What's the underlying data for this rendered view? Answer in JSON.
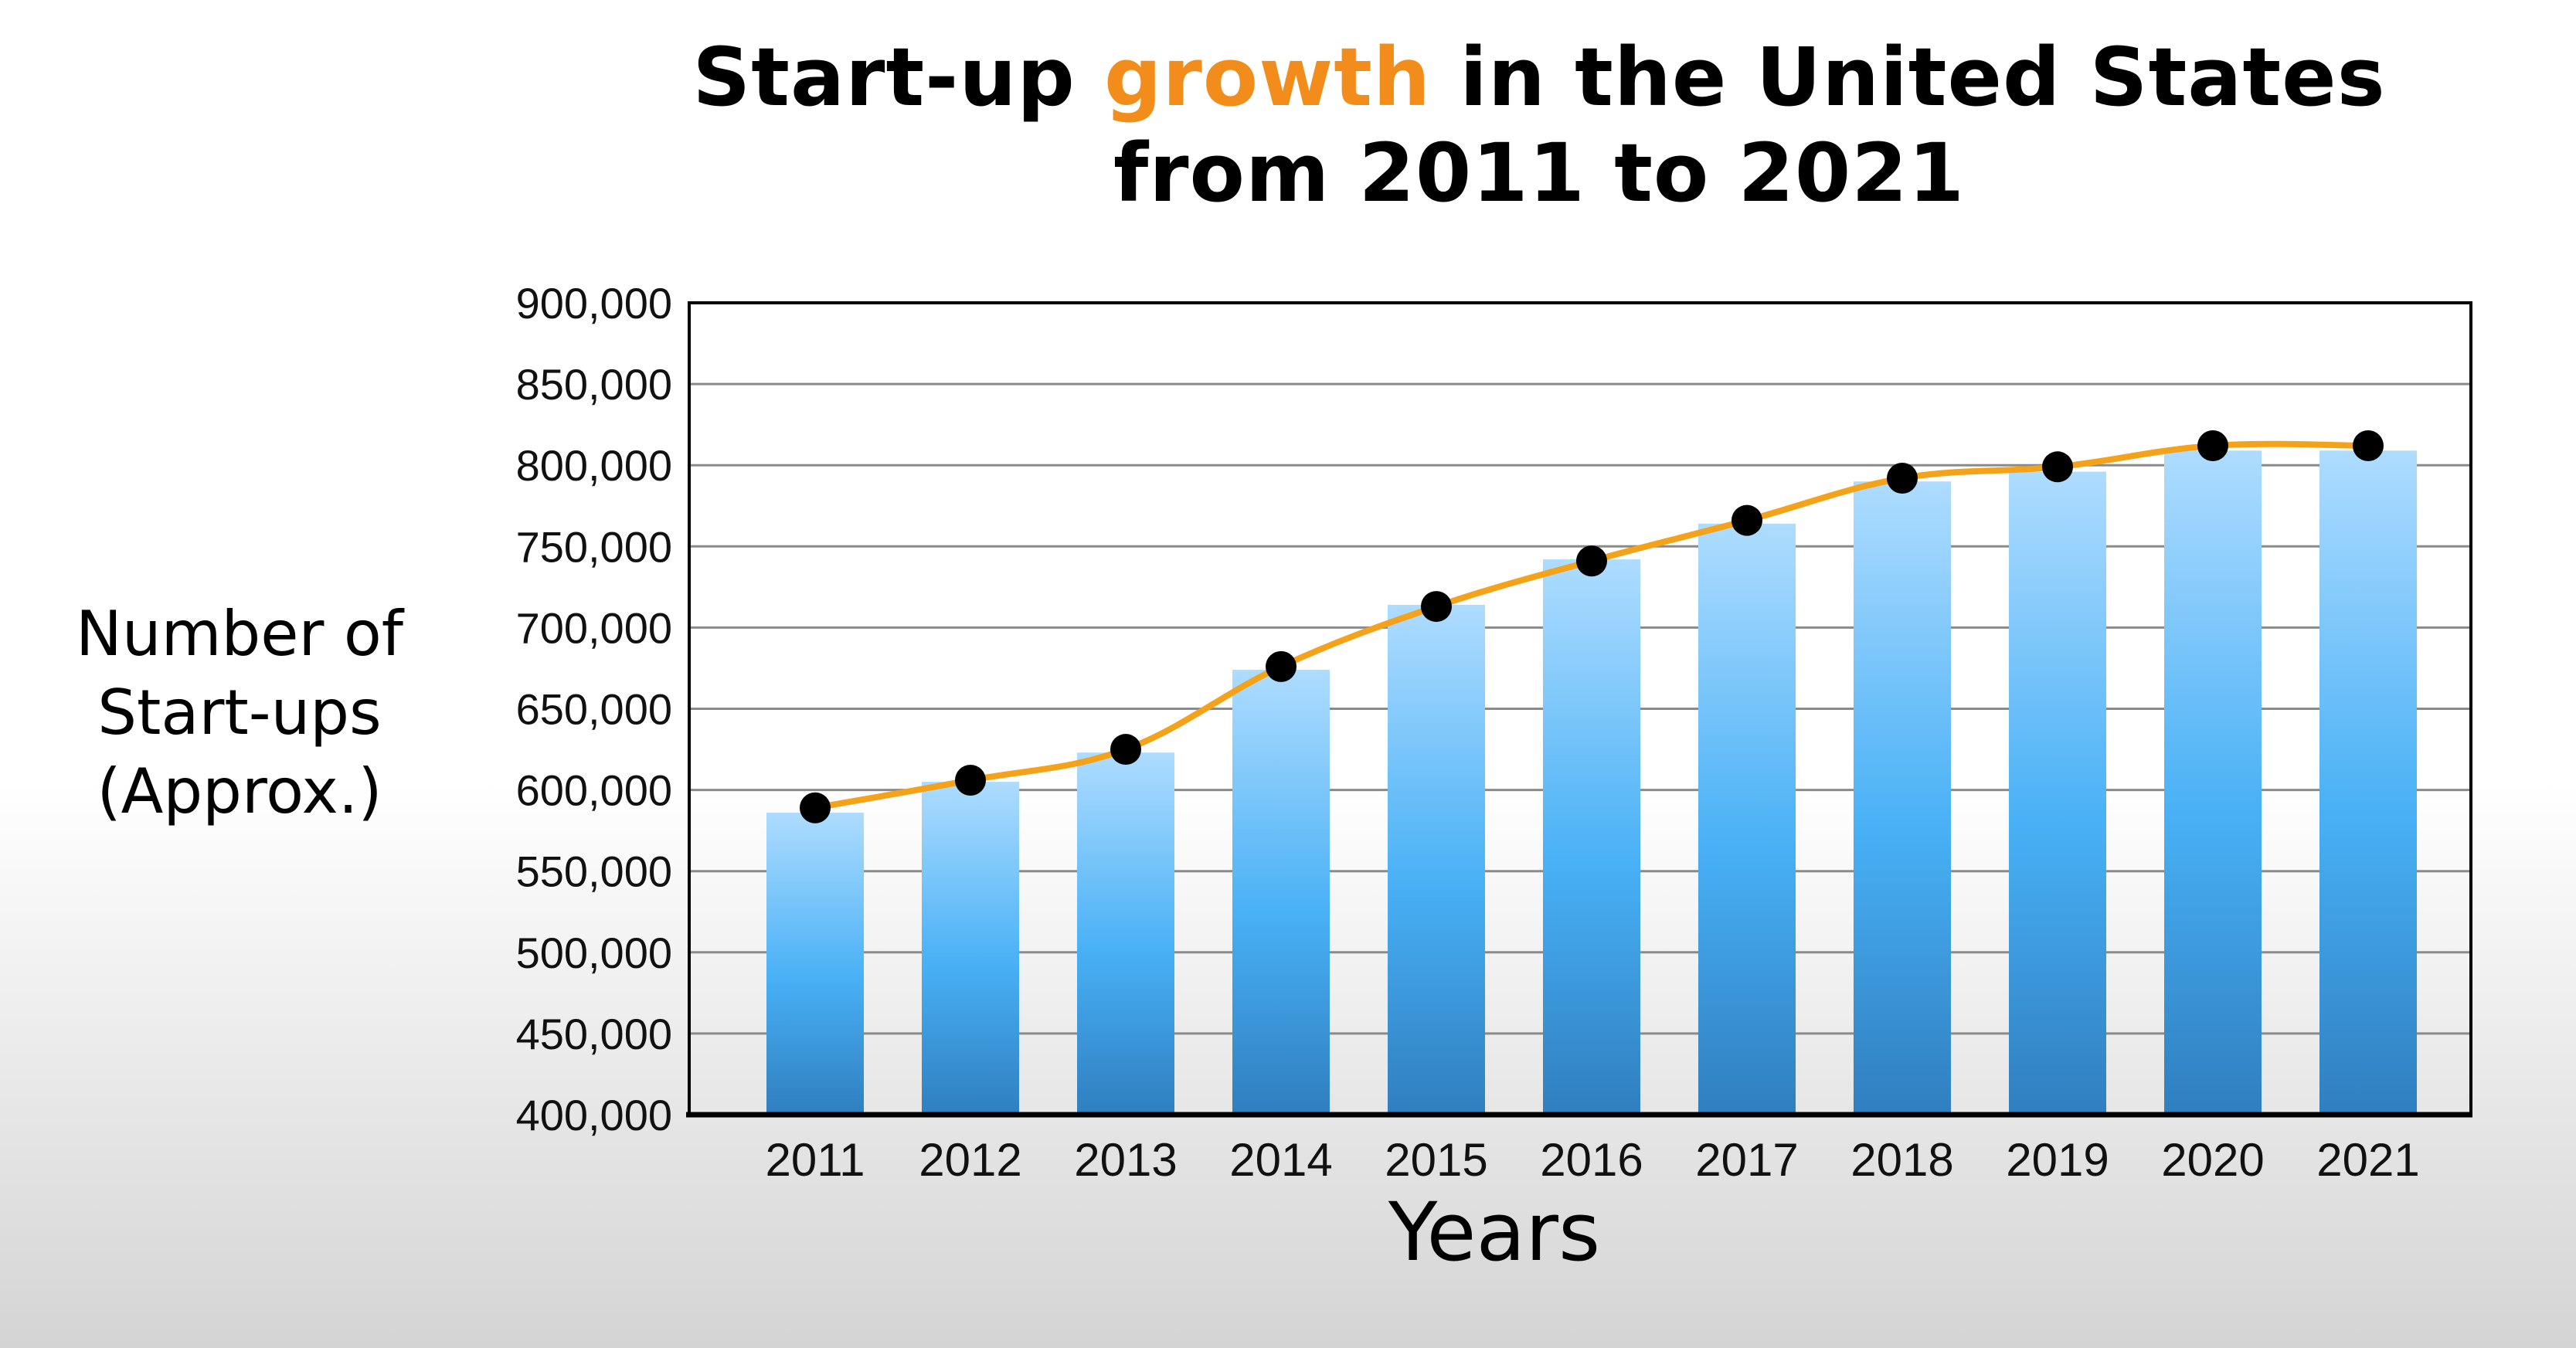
{
  "colors": {
    "title_accent": "#f28c1a",
    "line": "#f5a21b",
    "bar_top": "#aedcff",
    "bar_mid": "#48b0f5",
    "bar_bottom": "#2f7fbf",
    "point": "#000000",
    "grid": "#8a8a8a"
  },
  "chart_data": {
    "type": "bar",
    "title_parts": [
      "Start-up ",
      "growth",
      " in the United States"
    ],
    "title_line2": "from 2011 to 2021",
    "xlabel": "Years",
    "ylabel_lines": [
      "Number of",
      "Start-ups",
      "(Approx.)"
    ],
    "ylim": [
      400000,
      900000
    ],
    "y_ticks": [
      400000,
      450000,
      500000,
      550000,
      600000,
      650000,
      700000,
      750000,
      800000,
      850000,
      900000
    ],
    "y_tick_labels": [
      "400,000",
      "450,000",
      "500,000",
      "550,000",
      "600,000",
      "650,000",
      "700,000",
      "750,000",
      "800,000",
      "850,000",
      "900,000"
    ],
    "grid": true,
    "categories": [
      "2011",
      "2012",
      "2013",
      "2014",
      "2015",
      "2016",
      "2017",
      "2018",
      "2019",
      "2020",
      "2021"
    ],
    "series": [
      {
        "type": "bar",
        "values": [
          586000,
          605000,
          623000,
          674000,
          714000,
          742000,
          764000,
          790000,
          796000,
          809000,
          809000
        ]
      },
      {
        "type": "line",
        "values": [
          589000,
          606000,
          625000,
          676000,
          713000,
          741000,
          766000,
          792000,
          799000,
          812000,
          812000
        ]
      }
    ]
  }
}
